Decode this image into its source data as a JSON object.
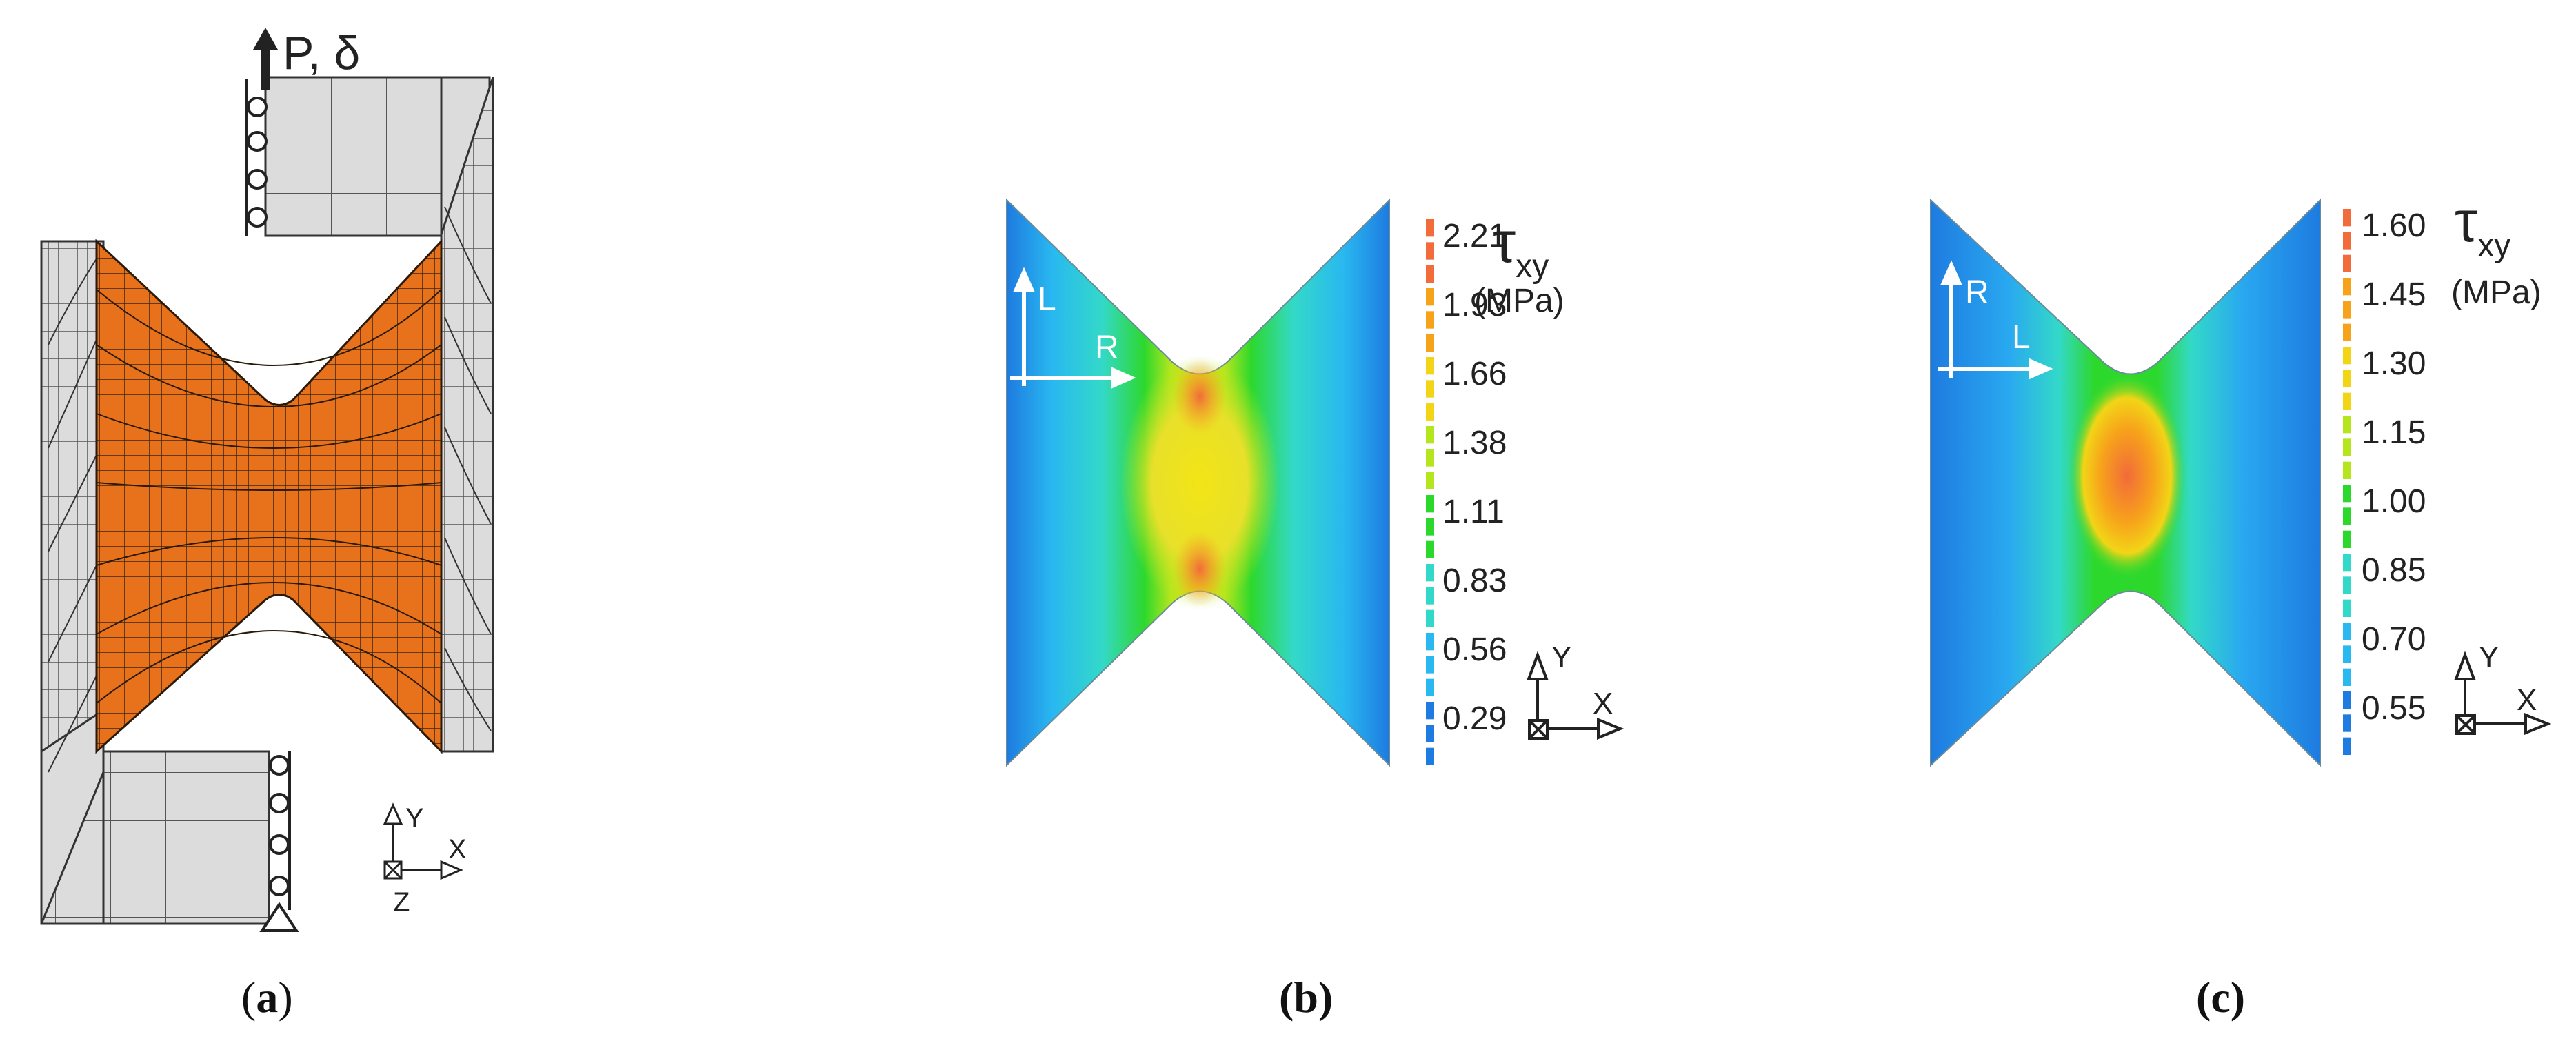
{
  "panel_a": {
    "load_label": "P, δ",
    "axis_y": "Y",
    "axis_x": "X",
    "axis_z": "Z",
    "mesh_color": "#E8721C",
    "fixture_color": "#DCDCDC"
  },
  "panel_b": {
    "symbol": "τ",
    "symbol_sub": "xy",
    "unit": "(MPa)",
    "dir_vertical": "L",
    "dir_horizontal": "R",
    "axis_y": "Y",
    "axis_x": "X",
    "legend_values": [
      "2.21",
      "1.93",
      "1.66",
      "1.38",
      "1.11",
      "0.83",
      "0.56",
      "0.29"
    ]
  },
  "panel_c": {
    "symbol": "τ",
    "symbol_sub": "xy",
    "unit": "(MPa)",
    "dir_vertical": "R",
    "dir_horizontal": "L",
    "axis_y": "Y",
    "axis_x": "X",
    "legend_values": [
      "1.60",
      "1.45",
      "1.30",
      "1.15",
      "1.00",
      "0.85",
      "0.70",
      "0.55"
    ]
  },
  "legend_colors": [
    "#F26B3A",
    "#F7A21B",
    "#F2D516",
    "#B5E61D",
    "#2DD82D",
    "#33D9C8",
    "#29B8F0",
    "#1E7BE0"
  ],
  "captions": {
    "a_open": "(",
    "a_letter": "a",
    "a_close": ")",
    "b": "(b)",
    "c": "(c)"
  }
}
